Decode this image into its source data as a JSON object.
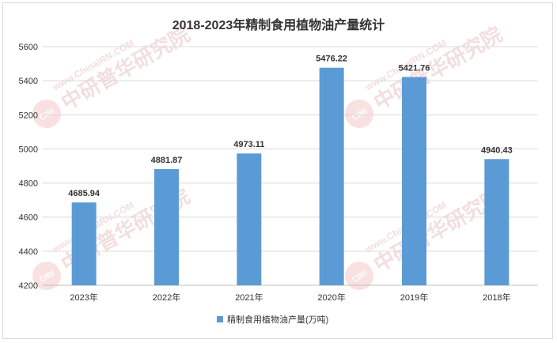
{
  "chart_data": {
    "type": "bar",
    "title": "2018-2023年精制食用植物油产量统计",
    "categories": [
      "2023年",
      "2022年",
      "2021年",
      "2020年",
      "2019年",
      "2018年"
    ],
    "series": [
      {
        "name": "精制食用植物油产量(万吨)",
        "values": [
          4685.94,
          4881.87,
          4973.11,
          5476.22,
          5421.76,
          4940.43
        ],
        "labels": [
          "4685.94",
          "4881.87",
          "4973.11",
          "5476.22",
          "5421.76",
          "4940.43"
        ]
      }
    ],
    "ylim": [
      4200,
      5600
    ],
    "yticks": [
      4200,
      4400,
      4600,
      4800,
      5000,
      5200,
      5400,
      5600
    ],
    "grid": true,
    "legend_position": "bottom",
    "colors": {
      "bar": "#5b9bd5",
      "grid": "#d9d9d9",
      "axis": "#bfbfbf",
      "text": "#333333"
    }
  },
  "watermark": {
    "badge": "CIRI",
    "cn": "中研普华研究院",
    "url": "www.ChinaIRN.COM"
  }
}
